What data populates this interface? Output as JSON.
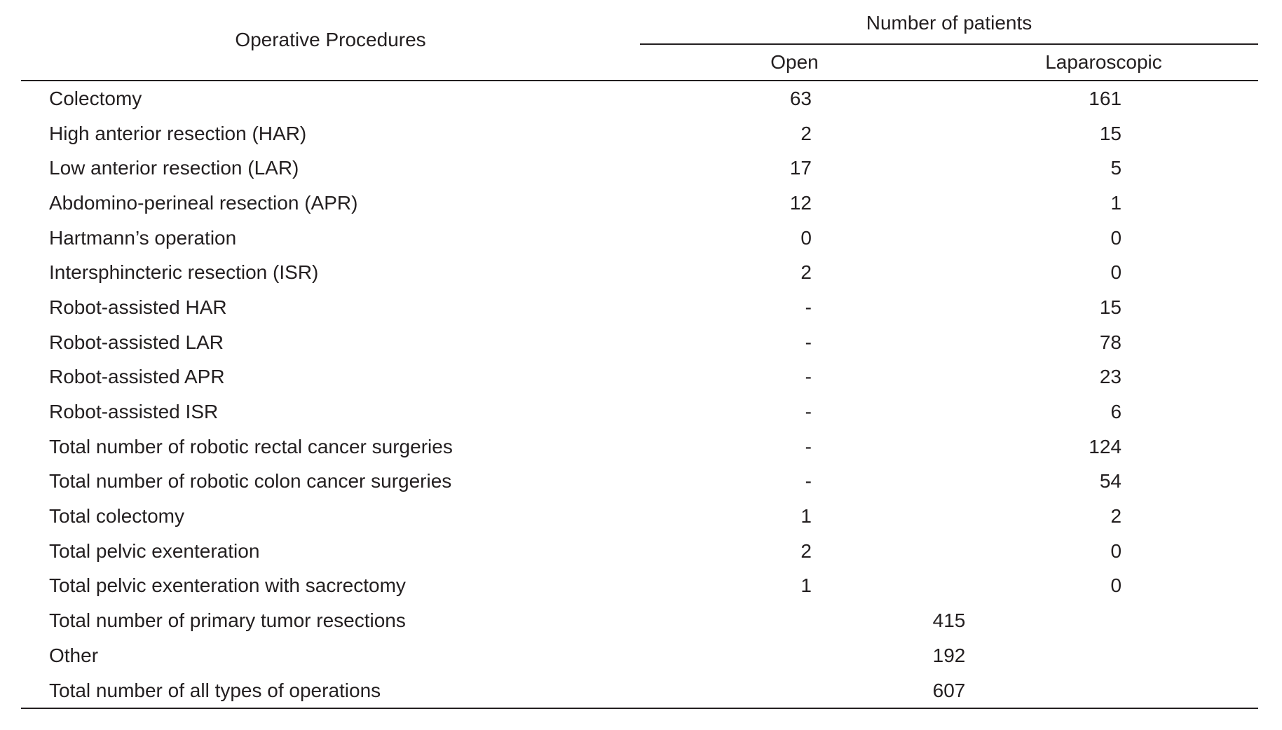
{
  "table": {
    "colors": {
      "text": "#231f20",
      "rule": "#231f20",
      "background": "#ffffff"
    },
    "procedures_header": "Operative Procedures",
    "group_header": "Number of patients",
    "sub_headers": {
      "open": "Open",
      "laparoscopic": "Laparoscopic"
    },
    "rows": [
      {
        "label": "Colectomy",
        "open": "63",
        "lap": "161"
      },
      {
        "label": "High anterior resection (HAR)",
        "open": "2",
        "lap": "15"
      },
      {
        "label": "Low anterior resection (LAR)",
        "open": "17",
        "lap": "5"
      },
      {
        "label": "Abdomino-perineal resection (APR)",
        "open": "12",
        "lap": "1"
      },
      {
        "label": "Hartmann’s operation",
        "open": "0",
        "lap": "0"
      },
      {
        "label": "Intersphincteric resection (ISR)",
        "open": "2",
        "lap": "0"
      },
      {
        "label": "Robot-assisted HAR",
        "open": "-",
        "lap": "15"
      },
      {
        "label": "Robot-assisted LAR",
        "open": "-",
        "lap": "78"
      },
      {
        "label": "Robot-assisted APR",
        "open": "-",
        "lap": "23"
      },
      {
        "label": "Robot-assisted ISR",
        "open": "-",
        "lap": "6"
      },
      {
        "label": "Total number of robotic rectal cancer surgeries",
        "open": "-",
        "lap": "124"
      },
      {
        "label": "Total number of robotic colon cancer surgeries",
        "open": "-",
        "lap": "54"
      },
      {
        "label": "Total colectomy",
        "open": "1",
        "lap": "2"
      },
      {
        "label": "Total pelvic exenteration",
        "open": "2",
        "lap": "0"
      },
      {
        "label": "Total pelvic exenteration with sacrectomy",
        "open": "1",
        "lap": "0"
      },
      {
        "label": "Total number of primary tumor resections",
        "span": "415"
      },
      {
        "label": "Other",
        "span": "192"
      },
      {
        "label": "Total number of all types of operations",
        "span": "607"
      }
    ]
  }
}
